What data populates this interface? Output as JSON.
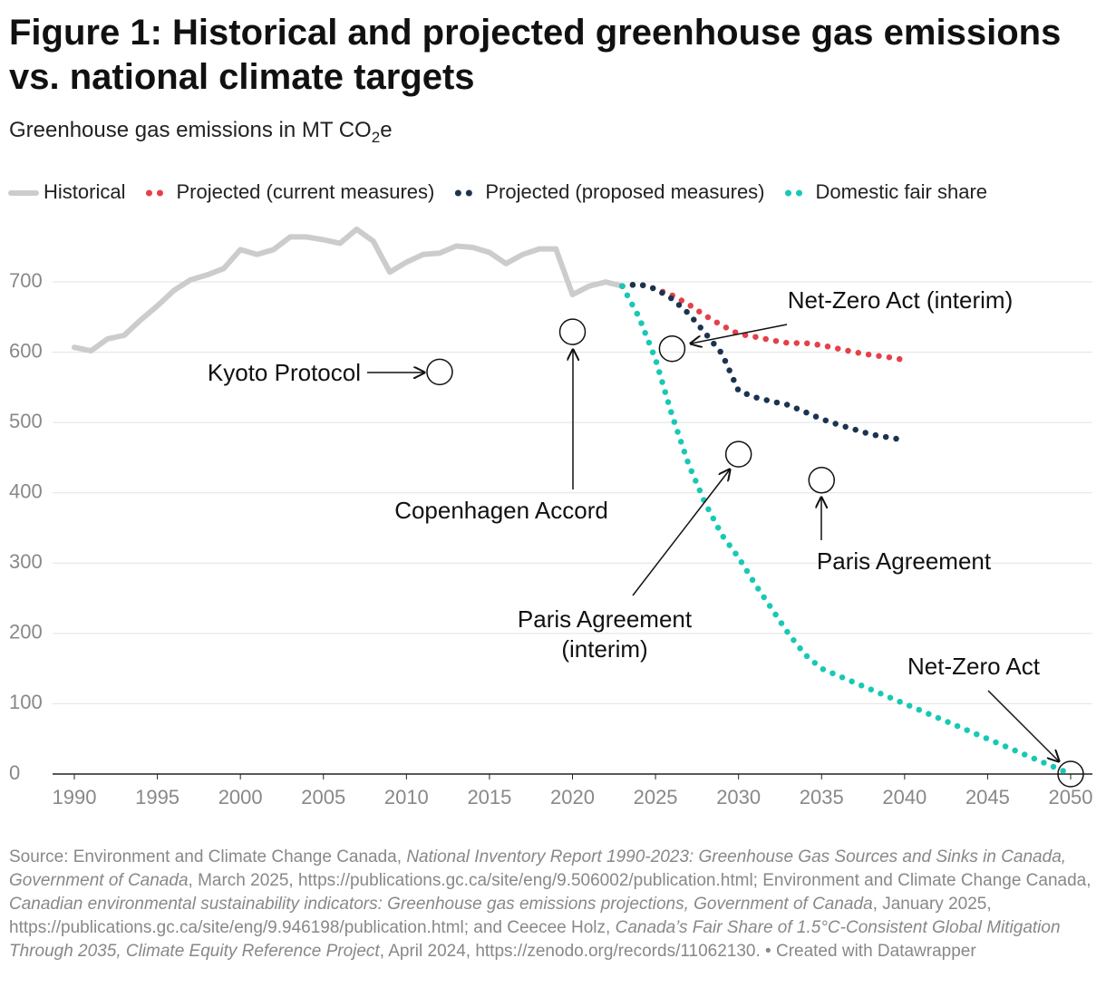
{
  "chart_data": {
    "type": "line",
    "title": "Figure 1: Historical and projected greenhouse gas emissions vs. national climate targets",
    "subtitle": [
      "Greenhouse gas emissions in MT CO",
      "2",
      "e"
    ],
    "xlim": [
      1990,
      2050
    ],
    "xticks": [
      1990,
      1995,
      2000,
      2005,
      2010,
      2015,
      2020,
      2025,
      2030,
      2035,
      2040,
      2045,
      2050
    ],
    "ylim": [
      0,
      780
    ],
    "yticks": [
      0,
      100,
      200,
      300,
      400,
      500,
      600,
      700
    ],
    "grid": true,
    "legend": "top",
    "series": [
      {
        "name": "Historical",
        "color": "#cccccc",
        "style": "solid",
        "x": [
          1990,
          1991,
          1992,
          1993,
          1994,
          1995,
          1996,
          1997,
          1998,
          1999,
          2000,
          2001,
          2002,
          2003,
          2004,
          2005,
          2006,
          2007,
          2008,
          2009,
          2010,
          2011,
          2012,
          2013,
          2014,
          2015,
          2016,
          2017,
          2018,
          2019,
          2020,
          2021,
          2022,
          2023
        ],
        "values": [
          607,
          602,
          619,
          624,
          646,
          666,
          688,
          703,
          710,
          719,
          746,
          739,
          746,
          764,
          764,
          760,
          755,
          775,
          758,
          714,
          728,
          739,
          741,
          751,
          749,
          742,
          726,
          739,
          747,
          747,
          682,
          694,
          700,
          694
        ]
      },
      {
        "name": "Projected (current measures)",
        "color": "#e5404a",
        "style": "dotted",
        "x": [
          2023,
          2024,
          2025,
          2026,
          2027,
          2028,
          2029,
          2030,
          2031,
          2032,
          2033,
          2034,
          2035,
          2036,
          2037,
          2038,
          2039,
          2040
        ],
        "values": [
          694,
          697,
          690,
          681,
          668,
          652,
          638,
          626,
          622,
          617,
          613,
          613,
          610,
          605,
          600,
          596,
          593,
          589
        ]
      },
      {
        "name": "Projected (proposed measures)",
        "color": "#1a3350",
        "style": "dotted",
        "x": [
          2023,
          2024,
          2025,
          2026,
          2027,
          2028,
          2029,
          2030,
          2031,
          2032,
          2033,
          2034,
          2035,
          2036,
          2037,
          2038,
          2039,
          2040
        ],
        "values": [
          694,
          697,
          690,
          676,
          655,
          627,
          598,
          545,
          536,
          530,
          525,
          515,
          505,
          497,
          490,
          483,
          479,
          475
        ]
      },
      {
        "name": "Domestic fair share",
        "color": "#17c9b4",
        "style": "dotted",
        "x": [
          2023,
          2024,
          2025,
          2026,
          2027,
          2028,
          2029,
          2030,
          2031,
          2032,
          2033,
          2034,
          2035,
          2040,
          2045,
          2050
        ],
        "values": [
          694,
          650,
          590,
          510,
          440,
          385,
          340,
          308,
          270,
          235,
          200,
          170,
          150,
          100,
          50,
          0
        ]
      }
    ],
    "targets": {
      "x": [
        2012,
        2020,
        2026,
        2030,
        2035,
        2050
      ],
      "values": [
        572,
        629,
        605,
        455,
        418,
        0
      ],
      "labels": [
        [
          "Kyoto Protocol"
        ],
        [
          "Copenhagen Accord"
        ],
        [
          "Net-Zero Act (interim)"
        ],
        [
          "Paris Agreement",
          "(interim)"
        ],
        [
          "Paris Agreement"
        ],
        [
          "Net-Zero Act"
        ]
      ]
    },
    "source": [
      {
        "text": "Source: Environment and Climate Change Canada, ",
        "italic": false
      },
      {
        "text": "National Inventory Report 1990-2023: Greenhouse Gas Sources and Sinks in Canada, Government of Canada",
        "italic": true
      },
      {
        "text": ", March 2025, https://publications.gc.ca/site/eng/9.506002/publication.html; Environment and Climate Change Canada, ",
        "italic": false
      },
      {
        "text": "Canadian environmental sustainability indicators: Greenhouse gas emissions projections, Government of Canada",
        "italic": true
      },
      {
        "text": ", January 2025, https://publications.gc.ca/site/eng/9.946198/publication.html; and Ceecee Holz, ",
        "italic": false
      },
      {
        "text": "Canada’s Fair Share of 1.5°C-Consistent Global Mitigation Through 2035, Climate Equity Reference Project",
        "italic": true
      },
      {
        "text": ", April 2024, https://zenodo.org/records/11062130. • Created with Datawrapper",
        "italic": false
      }
    ]
  }
}
